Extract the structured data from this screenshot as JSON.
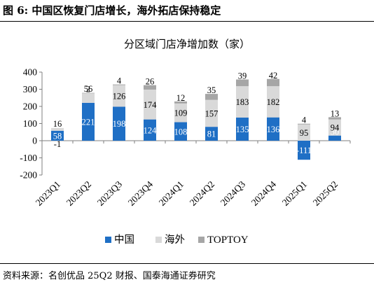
{
  "figure": {
    "title": "图 6:  中国区恢复门店增长，海外拓店保持稳定",
    "source": "资料来源：名创优品 25Q2 财报、国泰海通证券研究"
  },
  "chart_data": {
    "type": "bar",
    "stacked": true,
    "title": "分区域门店净增加数（家）",
    "categories": [
      "2023Q1",
      "2023Q2",
      "2023Q3",
      "2023Q4",
      "2024Q1",
      "2024Q2",
      "2024Q3",
      "2024Q4",
      "2025Q1",
      "2025Q2"
    ],
    "series": [
      {
        "name": "中国",
        "color": "#1f6fc5",
        "values": [
          58,
          221,
          198,
          124,
          108,
          81,
          135,
          136,
          -111,
          30
        ]
      },
      {
        "name": "海外",
        "color": "#d9d9d9",
        "values": [
          16,
          56,
          126,
          174,
          109,
          157,
          183,
          182,
          95,
          94
        ]
      },
      {
        "name": "TOPTOY",
        "color": "#a6a6a6",
        "values": [
          -1,
          2,
          4,
          26,
          12,
          35,
          39,
          42,
          4,
          13
        ]
      }
    ],
    "ylim": [
      -200,
      400
    ],
    "yticks": [
      -200,
      -100,
      0,
      100,
      200,
      300,
      400
    ],
    "grid": false,
    "legend": "bottom"
  }
}
